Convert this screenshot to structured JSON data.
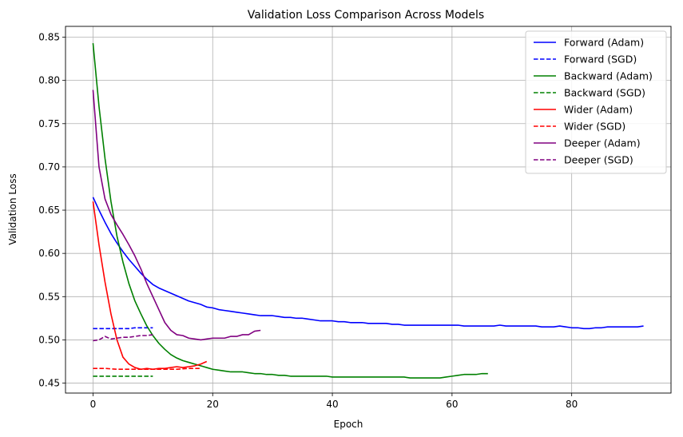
{
  "chart_data": {
    "type": "line",
    "title": "Validation Loss Comparison Across Models",
    "xlabel": "Epoch",
    "ylabel": "Validation Loss",
    "xlim": [
      -4.6,
      96.6
    ],
    "ylim": [
      0.4385,
      0.8625
    ],
    "xticks": [
      0,
      20,
      40,
      60,
      80
    ],
    "yticks": [
      0.45,
      0.5,
      0.55,
      0.6,
      0.65,
      0.7,
      0.75,
      0.8,
      0.85
    ],
    "xtick_labels": [
      "0",
      "20",
      "40",
      "60",
      "80"
    ],
    "ytick_labels": [
      "0.45",
      "0.50",
      "0.55",
      "0.60",
      "0.65",
      "0.70",
      "0.75",
      "0.80",
      "0.85"
    ],
    "grid": true,
    "legend_position": "top-right",
    "series": [
      {
        "name": "Forward (Adam)",
        "color": "#0000ff",
        "style": "solid",
        "x": [
          0,
          1,
          2,
          3,
          4,
          5,
          6,
          7,
          8,
          9,
          10,
          11,
          12,
          13,
          14,
          15,
          16,
          17,
          18,
          19,
          20,
          21,
          22,
          23,
          24,
          25,
          26,
          27,
          28,
          29,
          30,
          31,
          32,
          33,
          34,
          35,
          36,
          37,
          38,
          39,
          40,
          41,
          42,
          43,
          44,
          45,
          46,
          47,
          48,
          49,
          50,
          51,
          52,
          53,
          54,
          55,
          56,
          57,
          58,
          59,
          60,
          61,
          62,
          63,
          64,
          65,
          66,
          67,
          68,
          69,
          70,
          71,
          72,
          73,
          74,
          75,
          76,
          77,
          78,
          79,
          80,
          81,
          82,
          83,
          84,
          85,
          86,
          87,
          88,
          89,
          90,
          91,
          92
        ],
        "y": [
          0.665,
          0.65,
          0.636,
          0.623,
          0.612,
          0.602,
          0.593,
          0.585,
          0.577,
          0.57,
          0.564,
          0.56,
          0.557,
          0.554,
          0.551,
          0.548,
          0.545,
          0.543,
          0.541,
          0.538,
          0.537,
          0.535,
          0.534,
          0.533,
          0.532,
          0.531,
          0.53,
          0.529,
          0.528,
          0.528,
          0.528,
          0.527,
          0.526,
          0.526,
          0.525,
          0.525,
          0.524,
          0.523,
          0.522,
          0.522,
          0.522,
          0.521,
          0.521,
          0.52,
          0.52,
          0.52,
          0.519,
          0.519,
          0.519,
          0.519,
          0.518,
          0.518,
          0.517,
          0.517,
          0.517,
          0.517,
          0.517,
          0.517,
          0.517,
          0.517,
          0.517,
          0.517,
          0.516,
          0.516,
          0.516,
          0.516,
          0.516,
          0.516,
          0.517,
          0.516,
          0.516,
          0.516,
          0.516,
          0.516,
          0.516,
          0.515,
          0.515,
          0.515,
          0.516,
          0.515,
          0.514,
          0.514,
          0.513,
          0.513,
          0.514,
          0.514,
          0.515,
          0.515,
          0.515,
          0.515,
          0.515,
          0.515,
          0.516
        ]
      },
      {
        "name": "Forward (SGD)",
        "color": "#0000ff",
        "style": "dashed",
        "x": [
          0,
          1,
          2,
          3,
          4,
          5,
          6,
          7,
          8,
          9,
          10
        ],
        "y": [
          0.513,
          0.513,
          0.513,
          0.513,
          0.513,
          0.513,
          0.513,
          0.514,
          0.514,
          0.514,
          0.514
        ]
      },
      {
        "name": "Backward (Adam)",
        "color": "#008000",
        "style": "solid",
        "x": [
          0,
          1,
          2,
          3,
          4,
          5,
          6,
          7,
          8,
          9,
          10,
          11,
          12,
          13,
          14,
          15,
          16,
          17,
          18,
          19,
          20,
          21,
          22,
          23,
          24,
          25,
          26,
          27,
          28,
          29,
          30,
          31,
          32,
          33,
          34,
          35,
          36,
          37,
          38,
          39,
          40,
          41,
          42,
          43,
          44,
          45,
          46,
          47,
          48,
          49,
          50,
          51,
          52,
          53,
          54,
          55,
          56,
          57,
          58,
          59,
          60,
          61,
          62,
          63,
          64,
          65,
          66
        ],
        "y": [
          0.843,
          0.77,
          0.71,
          0.66,
          0.62,
          0.59,
          0.565,
          0.545,
          0.53,
          0.516,
          0.505,
          0.496,
          0.489,
          0.483,
          0.479,
          0.476,
          0.474,
          0.472,
          0.47,
          0.468,
          0.466,
          0.465,
          0.464,
          0.463,
          0.463,
          0.463,
          0.462,
          0.461,
          0.461,
          0.46,
          0.46,
          0.459,
          0.459,
          0.458,
          0.458,
          0.458,
          0.458,
          0.458,
          0.458,
          0.458,
          0.457,
          0.457,
          0.457,
          0.457,
          0.457,
          0.457,
          0.457,
          0.457,
          0.457,
          0.457,
          0.457,
          0.457,
          0.457,
          0.456,
          0.456,
          0.456,
          0.456,
          0.456,
          0.456,
          0.457,
          0.458,
          0.459,
          0.46,
          0.46,
          0.46,
          0.461,
          0.461
        ]
      },
      {
        "name": "Backward (SGD)",
        "color": "#008000",
        "style": "dashed",
        "x": [
          0,
          1,
          2,
          3,
          4,
          5,
          6,
          7,
          8,
          9,
          10
        ],
        "y": [
          0.458,
          0.458,
          0.458,
          0.458,
          0.458,
          0.458,
          0.458,
          0.458,
          0.458,
          0.458,
          0.458
        ]
      },
      {
        "name": "Wider (Adam)",
        "color": "#ff0000",
        "style": "solid",
        "x": [
          0,
          1,
          2,
          3,
          4,
          5,
          6,
          7,
          8,
          9,
          10,
          11,
          12,
          13,
          14,
          15,
          16,
          17,
          18,
          19
        ],
        "y": [
          0.66,
          0.61,
          0.567,
          0.53,
          0.5,
          0.48,
          0.472,
          0.468,
          0.466,
          0.467,
          0.466,
          0.467,
          0.467,
          0.468,
          0.469,
          0.468,
          0.469,
          0.47,
          0.472,
          0.475
        ]
      },
      {
        "name": "Wider (SGD)",
        "color": "#ff0000",
        "style": "dashed",
        "x": [
          0,
          2,
          4,
          6,
          8,
          10,
          12,
          14,
          16,
          18
        ],
        "y": [
          0.467,
          0.467,
          0.466,
          0.466,
          0.466,
          0.466,
          0.466,
          0.466,
          0.467,
          0.467
        ]
      },
      {
        "name": "Deeper (Adam)",
        "color": "#800080",
        "style": "solid",
        "x": [
          0,
          1,
          2,
          3,
          4,
          5,
          6,
          7,
          8,
          9,
          10,
          11,
          12,
          13,
          14,
          15,
          16,
          17,
          18,
          19,
          20,
          21,
          22,
          23,
          24,
          25,
          26,
          27,
          28
        ],
        "y": [
          0.789,
          0.7,
          0.663,
          0.645,
          0.633,
          0.622,
          0.61,
          0.597,
          0.582,
          0.565,
          0.55,
          0.535,
          0.52,
          0.511,
          0.506,
          0.505,
          0.502,
          0.501,
          0.5,
          0.501,
          0.502,
          0.502,
          0.502,
          0.504,
          0.504,
          0.506,
          0.506,
          0.51,
          0.511
        ]
      },
      {
        "name": "Deeper (SGD)",
        "color": "#800080",
        "style": "dashed",
        "x": [
          0,
          1,
          2,
          3,
          4,
          5,
          6,
          7,
          8,
          9,
          10
        ],
        "y": [
          0.499,
          0.5,
          0.504,
          0.501,
          0.502,
          0.503,
          0.503,
          0.504,
          0.505,
          0.505,
          0.506
        ]
      }
    ]
  }
}
